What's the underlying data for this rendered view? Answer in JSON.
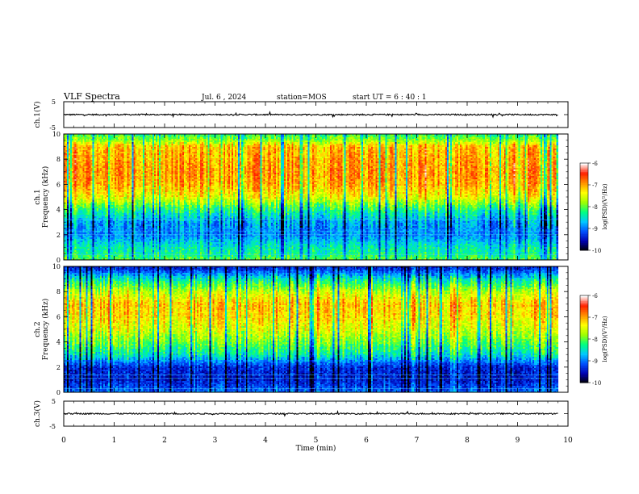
{
  "header": {
    "title": "VLF Spectra",
    "date": "Jul. 6 , 2024",
    "station": "station=MOS",
    "start": "start UT =  6 : 40 : 1"
  },
  "colors": {
    "ch1_line": "#000000",
    "colormap": [
      "#000000",
      "#0000b0",
      "#0050ff",
      "#00c8ff",
      "#00ff80",
      "#a0ff00",
      "#ffff00",
      "#ff9000",
      "#ff2000",
      "#ffffff"
    ]
  },
  "chart_data": [
    {
      "type": "line",
      "name": "ch1-waveform",
      "ylabel": "ch.1(V)",
      "ylim": [
        -5,
        5
      ],
      "y_ticks": [
        "5",
        "-5"
      ],
      "x": [
        0,
        9.8
      ],
      "y": [
        0,
        0
      ]
    },
    {
      "type": "heatmap",
      "name": "ch1-spectrogram",
      "ylabel": "ch.1\nFrequency (kHz)",
      "ylim": [
        0,
        10
      ],
      "y_ticks": [
        "0",
        "2",
        "4",
        "6",
        "8",
        "10"
      ],
      "x_range_min": [
        0,
        9.8
      ],
      "colorbar": {
        "label": "log(PSD)(V²/Hz)",
        "range": [
          -10,
          -6
        ],
        "ticks": [
          "-6",
          "-7",
          "-8",
          "-9",
          "-10"
        ]
      },
      "frequency_profile_kHz": [
        0,
        0.5,
        1,
        2,
        3,
        4,
        5,
        6,
        7,
        8,
        9,
        9.5,
        10
      ],
      "log_psd_profile": [
        -8.0,
        -8.3,
        -8.4,
        -8.9,
        -8.8,
        -8.2,
        -7.4,
        -7.0,
        -6.9,
        -7.0,
        -7.1,
        -7.8,
        -8.2
      ]
    },
    {
      "type": "heatmap",
      "name": "ch2-spectrogram",
      "ylabel": "ch.2\nFrequency (kHz)",
      "ylim": [
        0,
        10
      ],
      "y_ticks": [
        "0",
        "2",
        "4",
        "6",
        "8",
        "10"
      ],
      "x_range_min": [
        0,
        9.8
      ],
      "colorbar": {
        "label": "log(PSD)(V²/Hz)",
        "range": [
          -10,
          -6
        ],
        "ticks": [
          "-6",
          "-7",
          "-8",
          "-9",
          "-10"
        ]
      },
      "frequency_profile_kHz": [
        0,
        0.5,
        1,
        2,
        3,
        4,
        5,
        6,
        7,
        8,
        9,
        9.5,
        10
      ],
      "log_psd_profile": [
        -9.0,
        -9.2,
        -9.4,
        -9.3,
        -8.4,
        -7.9,
        -7.5,
        -7.2,
        -7.1,
        -7.6,
        -8.4,
        -9.0,
        -9.4
      ]
    },
    {
      "type": "line",
      "name": "ch3-waveform",
      "ylabel": "ch.3(V)",
      "ylim": [
        -5,
        5
      ],
      "y_ticks": [
        "5",
        "-5"
      ],
      "x": [
        0,
        9.8
      ],
      "y": [
        0,
        0
      ]
    }
  ],
  "x_axis": {
    "label": "Time (min)",
    "range": [
      0,
      10
    ],
    "ticks": [
      "0",
      "1",
      "2",
      "3",
      "4",
      "5",
      "6",
      "7",
      "8",
      "9",
      "10"
    ]
  }
}
